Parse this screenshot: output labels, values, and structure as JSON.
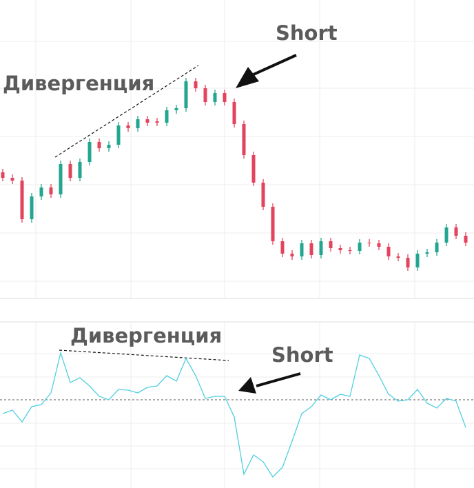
{
  "chart_data": [
    {
      "type": "candlestick",
      "annotations": [
        "Дивергенция",
        "Short"
      ],
      "up_color": "#22a68f",
      "down_color": "#e3435c",
      "ylim": [
        0,
        433
      ],
      "open": [
        183,
        175,
        171,
        115,
        148,
        161,
        151,
        195,
        175,
        198,
        227,
        218,
        223,
        251,
        247,
        260,
        257,
        255,
        273,
        276,
        315,
        305,
        285,
        298,
        285,
        253,
        208,
        168,
        133,
        83,
        65,
        61,
        80,
        63,
        83,
        73,
        70,
        69,
        81,
        80,
        75,
        61,
        59,
        45,
        65,
        67,
        81,
        103,
        91
      ],
      "high": [
        188,
        180,
        176,
        153,
        166,
        166,
        200,
        200,
        203,
        232,
        232,
        228,
        256,
        256,
        265,
        265,
        262,
        278,
        281,
        320,
        320,
        310,
        303,
        303,
        290,
        258,
        213,
        173,
        138,
        88,
        70,
        85,
        85,
        88,
        88,
        78,
        75,
        86,
        86,
        85,
        80,
        66,
        64,
        70,
        72,
        86,
        108,
        108,
        96
      ],
      "low": [
        170,
        166,
        110,
        110,
        143,
        146,
        146,
        170,
        170,
        193,
        213,
        213,
        218,
        242,
        242,
        250,
        250,
        250,
        268,
        271,
        300,
        280,
        280,
        280,
        248,
        203,
        163,
        128,
        78,
        60,
        56,
        56,
        58,
        58,
        68,
        65,
        64,
        64,
        75,
        70,
        56,
        54,
        40,
        40,
        60,
        62,
        76,
        86,
        76
      ],
      "close": [
        175,
        171,
        115,
        148,
        161,
        151,
        195,
        175,
        198,
        227,
        218,
        223,
        251,
        247,
        260,
        255,
        255,
        273,
        276,
        315,
        305,
        285,
        298,
        285,
        253,
        208,
        168,
        133,
        83,
        65,
        61,
        80,
        63,
        83,
        73,
        70,
        69,
        81,
        80,
        75,
        61,
        59,
        45,
        65,
        67,
        81,
        103,
        91,
        81
      ]
    },
    {
      "type": "line",
      "annotations": [
        "Дивергенция",
        "Short"
      ],
      "color": "#4fcfe0",
      "reference_line": 0,
      "ylim": [
        -128,
        113
      ],
      "values": [
        -20,
        -15,
        -32,
        -10,
        -7,
        10,
        68,
        25,
        32,
        20,
        5,
        0,
        15,
        14,
        10,
        18,
        20,
        35,
        27,
        60,
        35,
        2,
        5,
        5,
        -25,
        -108,
        -80,
        -90,
        -112,
        -98,
        -60,
        -20,
        -10,
        7,
        0,
        8,
        5,
        65,
        60,
        35,
        8,
        -2,
        0,
        15,
        -5,
        -12,
        2,
        -2,
        -40
      ]
    }
  ]
}
